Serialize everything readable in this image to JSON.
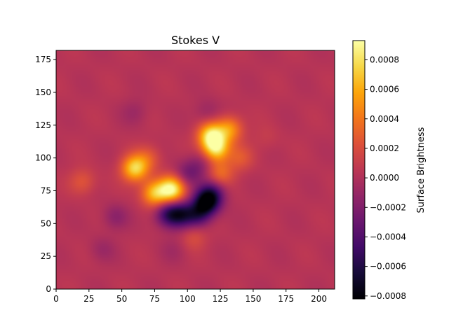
{
  "chart_data": {
    "type": "heatmap",
    "title": "Stokes V",
    "xlabel": "",
    "ylabel": "",
    "colormap": "inferno",
    "xlim": [
      0,
      212
    ],
    "ylim": [
      0,
      182
    ],
    "x_ticks": [
      0,
      25,
      50,
      75,
      100,
      125,
      150,
      175,
      200
    ],
    "y_ticks": [
      0,
      25,
      50,
      75,
      100,
      125,
      150,
      175
    ],
    "x_tick_labels": [
      "0",
      "25",
      "50",
      "75",
      "100",
      "125",
      "150",
      "175",
      "200"
    ],
    "y_tick_labels": [
      "0",
      "25",
      "50",
      "75",
      "100",
      "125",
      "150",
      "175"
    ],
    "colorbar": {
      "label": "Surface Brightness",
      "range": [
        -0.00082,
        0.00093
      ],
      "ticks": [
        -0.0008,
        -0.0006,
        -0.0004,
        -0.0002,
        0.0,
        0.0002,
        0.0004,
        0.0006,
        0.0008
      ],
      "tick_labels": [
        "−0.0008",
        "−0.0006",
        "−0.0004",
        "−0.0002",
        "0.0000",
        "0.0002",
        "0.0004",
        "0.0006",
        "0.0008"
      ]
    },
    "background_value": 3e-05,
    "features": [
      {
        "x": 115,
        "y": 67,
        "value": -0.00082
      },
      {
        "x": 95,
        "y": 57,
        "value": -0.0005
      },
      {
        "x": 108,
        "y": 57,
        "value": -0.00045
      },
      {
        "x": 85,
        "y": 57,
        "value": -0.00045
      },
      {
        "x": 100,
        "y": 88,
        "value": -0.00022
      },
      {
        "x": 120,
        "y": 75,
        "value": -0.00025
      },
      {
        "x": 110,
        "y": 95,
        "value": -0.00015
      },
      {
        "x": 45,
        "y": 55,
        "value": -0.00015
      },
      {
        "x": 115,
        "y": 135,
        "value": -0.0001
      },
      {
        "x": 60,
        "y": 135,
        "value": -8e-05
      },
      {
        "x": 35,
        "y": 30,
        "value": -8e-05
      },
      {
        "x": 90,
        "y": 30,
        "value": -5e-05
      },
      {
        "x": 88,
        "y": 76,
        "value": 0.00088
      },
      {
        "x": 75,
        "y": 73,
        "value": 0.00065
      },
      {
        "x": 60,
        "y": 92,
        "value": 0.00075
      },
      {
        "x": 118,
        "y": 117,
        "value": 0.0008
      },
      {
        "x": 122,
        "y": 107,
        "value": 0.00075
      },
      {
        "x": 132,
        "y": 122,
        "value": 0.0005
      },
      {
        "x": 125,
        "y": 88,
        "value": 0.00035
      },
      {
        "x": 140,
        "y": 100,
        "value": 0.00025
      },
      {
        "x": 20,
        "y": 82,
        "value": 0.00025
      },
      {
        "x": 70,
        "y": 100,
        "value": 0.00025
      },
      {
        "x": 105,
        "y": 40,
        "value": 0.0002
      },
      {
        "x": 160,
        "y": 115,
        "value": 0.0001
      }
    ]
  }
}
